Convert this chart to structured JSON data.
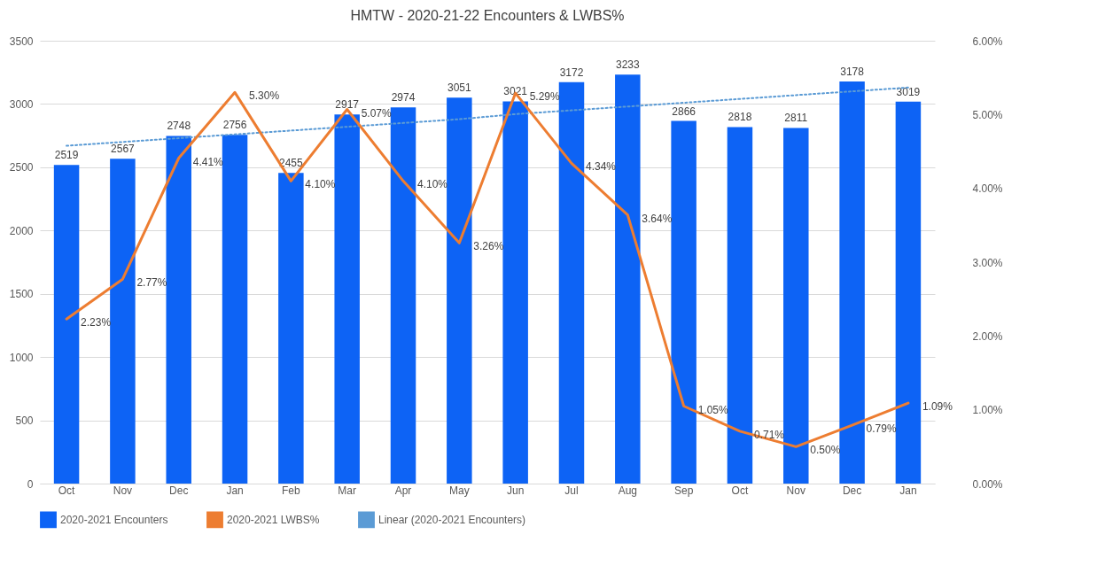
{
  "chart_data": {
    "type": "bar",
    "title": "HMTW - 2020-21-22 Encounters & LWBS%",
    "categories": [
      "Oct",
      "Nov",
      "Dec",
      "Jan",
      "Feb",
      "Mar",
      "Apr",
      "May",
      "Jun",
      "Jul",
      "Aug",
      "Sep",
      "Oct",
      "Nov",
      "Dec",
      "Jan"
    ],
    "series": [
      {
        "name": "2020-2021 Encounters",
        "color": "#0d63f5",
        "values": [
          2519,
          2567,
          2748,
          2756,
          2455,
          2917,
          2974,
          3051,
          3021,
          3172,
          3233,
          2866,
          2818,
          2811,
          3178,
          3019
        ],
        "value_labels": [
          "2519",
          "2567",
          "2748",
          "2756",
          "2455",
          "2917",
          "2974",
          "3051",
          "3021",
          "3172",
          "3233",
          "2866",
          "2818",
          "2811",
          "3178",
          "3019"
        ]
      },
      {
        "name": "2020-2021 LWBS%",
        "type": "line",
        "axis": "y2",
        "color": "#ed7d31",
        "values": [
          2.23,
          2.77,
          4.41,
          5.3,
          4.1,
          5.07,
          4.1,
          3.26,
          5.29,
          4.34,
          3.64,
          1.05,
          0.71,
          0.5,
          0.79,
          1.09
        ],
        "value_labels": [
          "2.23%",
          "2.77%",
          "4.41%",
          "5.30%",
          "4.10%",
          "5.07%",
          "4.10%",
          "3.26%",
          "5.29%",
          "4.34%",
          "3.64%",
          "1.05%",
          "0.71%",
          "0.50%",
          "0.79%",
          "1.09%"
        ]
      },
      {
        "name": "Linear (2020-2021 Encounters)",
        "type": "line",
        "line_style": "dotted",
        "color": "#5b9bd5",
        "values": [
          2670,
          2700,
          2730,
          2760,
          2790,
          2820,
          2850,
          2880,
          2920,
          2950,
          2980,
          3010,
          3040,
          3070,
          3100,
          3130
        ]
      }
    ],
    "ylim": [
      0,
      3500
    ],
    "yticks": [
      0,
      500,
      1000,
      1500,
      2000,
      2500,
      3000,
      3500
    ],
    "y2lim": [
      0,
      6
    ],
    "y2ticks": [
      {
        "value": 0,
        "label": "0.00%"
      },
      {
        "value": 1,
        "label": "1.00%"
      },
      {
        "value": 2,
        "label": "2.00%"
      },
      {
        "value": 3,
        "label": "3.00%"
      },
      {
        "value": 4,
        "label": "4.00%"
      },
      {
        "value": 5,
        "label": "5.00%"
      },
      {
        "value": 6,
        "label": "6.00%"
      }
    ],
    "grid": "y",
    "legend": "bottom"
  }
}
